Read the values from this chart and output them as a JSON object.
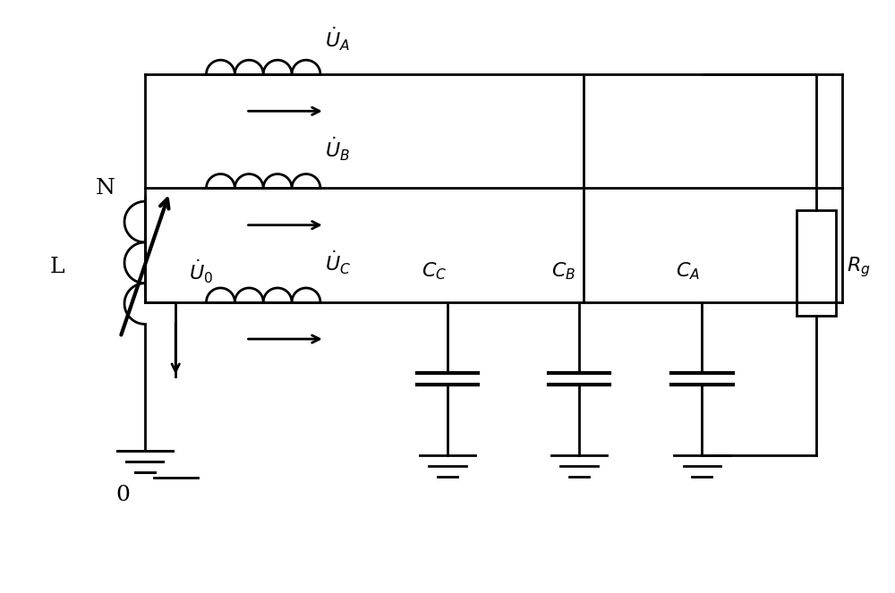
{
  "fig_width": 10.0,
  "fig_height": 6.63,
  "bg_color": "#ffffff",
  "line_color": "#000000",
  "line_width": 2.0,
  "text_color": "#000000"
}
